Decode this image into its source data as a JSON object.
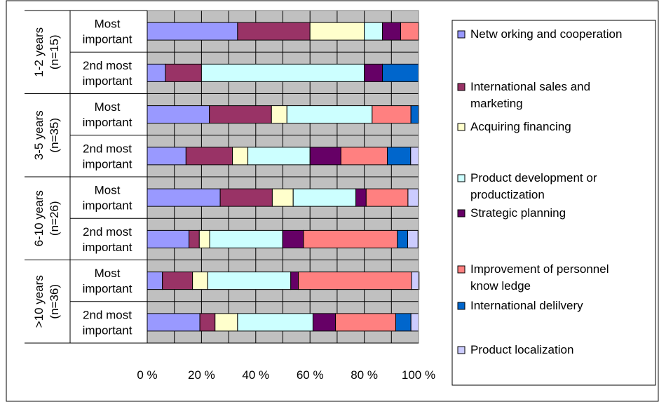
{
  "chart_data": {
    "type": "bar",
    "orientation": "horizontal",
    "stacked": true,
    "percent_stacked": true,
    "xlim": [
      0,
      100
    ],
    "x_ticks": [
      "0 %",
      "20 %",
      "40 %",
      "60 %",
      "80 %",
      "100 %"
    ],
    "grid": true,
    "legend_position": "right",
    "groups": [
      {
        "label": "1-2 years",
        "n": "(n=15)"
      },
      {
        "label": "3-5 years",
        "n": "(n=35)"
      },
      {
        "label": "6-10 years",
        "n": "(n=26)"
      },
      {
        "label": ">10 years",
        "n": "(n=36)"
      }
    ],
    "rows": [
      {
        "group": 0,
        "label_line1": "Most",
        "label_line2": "important"
      },
      {
        "group": 0,
        "label_line1": "2nd most",
        "label_line2": "important"
      },
      {
        "group": 1,
        "label_line1": "Most",
        "label_line2": "important"
      },
      {
        "group": 1,
        "label_line1": "2nd most",
        "label_line2": "important"
      },
      {
        "group": 2,
        "label_line1": "Most",
        "label_line2": "important"
      },
      {
        "group": 2,
        "label_line1": "2nd most",
        "label_line2": "important"
      },
      {
        "group": 3,
        "label_line1": "Most",
        "label_line2": "important"
      },
      {
        "group": 3,
        "label_line1": "2nd most",
        "label_line2": "important"
      }
    ],
    "series": [
      {
        "name_lines": [
          "Netw orking and cooperation"
        ],
        "color": "#9999ff",
        "values": [
          33.3,
          6.7,
          22.9,
          14.3,
          26.9,
          15.4,
          5.6,
          19.4
        ]
      },
      {
        "name_lines": [
          "International sales and",
          "marketing"
        ],
        "color": "#993366",
        "values": [
          26.7,
          13.3,
          22.9,
          17.1,
          19.2,
          3.8,
          11.1,
          5.6
        ]
      },
      {
        "name_lines": [
          "Acquiring financing"
        ],
        "color": "#ffffcc",
        "values": [
          20.0,
          0,
          5.7,
          5.7,
          7.7,
          3.8,
          5.6,
          8.3
        ]
      },
      {
        "name_lines": [
          "Product development or",
          "productization"
        ],
        "color": "#ccffff",
        "values": [
          6.7,
          60.0,
          31.4,
          22.9,
          23.1,
          26.9,
          30.6,
          27.8
        ]
      },
      {
        "name_lines": [
          "Strategic planning"
        ],
        "color": "#660066",
        "values": [
          6.7,
          6.7,
          0,
          11.4,
          3.8,
          7.7,
          2.8,
          8.3
        ]
      },
      {
        "name_lines": [
          "Improvement of personnel",
          "know ledge"
        ],
        "color": "#ff8080",
        "values": [
          6.7,
          0,
          14.3,
          17.1,
          15.4,
          34.6,
          41.7,
          22.2
        ]
      },
      {
        "name_lines": [
          "International delilvery"
        ],
        "color": "#0066cc",
        "values": [
          0,
          13.3,
          2.9,
          8.6,
          0,
          3.8,
          0,
          5.6
        ]
      },
      {
        "name_lines": [
          "Product localization"
        ],
        "color": "#ccccff",
        "values": [
          0,
          0,
          0,
          2.9,
          3.8,
          3.8,
          2.8,
          2.8
        ]
      }
    ]
  }
}
